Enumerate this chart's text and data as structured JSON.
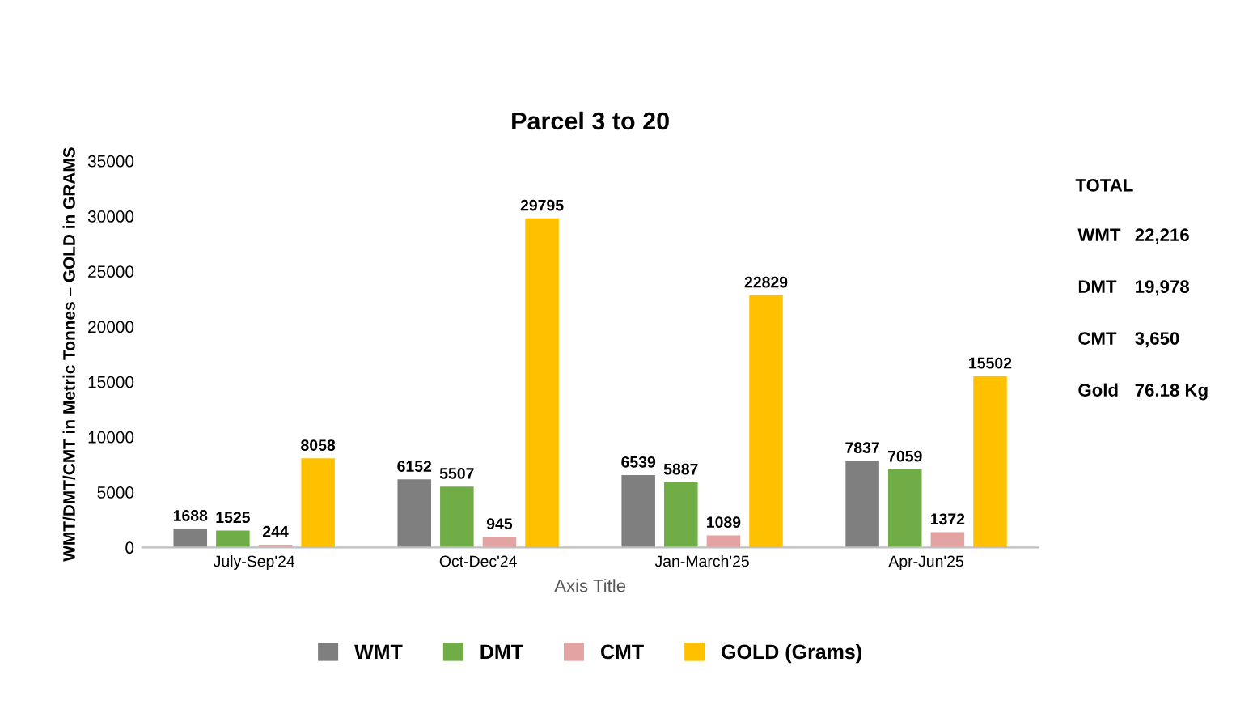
{
  "chart_data": {
    "type": "bar",
    "title": "Parcel 3 to 20",
    "xlabel": "Axis Title",
    "ylabel": "WMT/DMT/CMT in Metric Tonnes – GOLD in GRAMS",
    "categories": [
      "July-Sep'24",
      "Oct-Dec'24",
      "Jan-March'25",
      "Apr-Jun'25"
    ],
    "series": [
      {
        "name": "WMT",
        "color": "#7f7f7f",
        "values": [
          1688,
          6152,
          6539,
          7837
        ]
      },
      {
        "name": "DMT",
        "color": "#70ad47",
        "values": [
          1525,
          5507,
          5887,
          7059
        ]
      },
      {
        "name": "CMT",
        "color": "#e3a3a3",
        "values": [
          244,
          945,
          1089,
          1372
        ]
      },
      {
        "name": "GOLD (Grams)",
        "color": "#ffc000",
        "values": [
          8058,
          29795,
          22829,
          15502
        ]
      }
    ],
    "ylim": [
      0,
      35000
    ],
    "yticks": [
      0,
      5000,
      10000,
      15000,
      20000,
      25000,
      30000,
      35000
    ],
    "grid": false,
    "legend": "bottom",
    "data_labels": true,
    "annotations": [
      "TOTAL",
      "WMT",
      "22,216",
      "DMT",
      "19,978",
      "CMT",
      "3,650",
      "Gold",
      "76.18 Kg"
    ]
  }
}
